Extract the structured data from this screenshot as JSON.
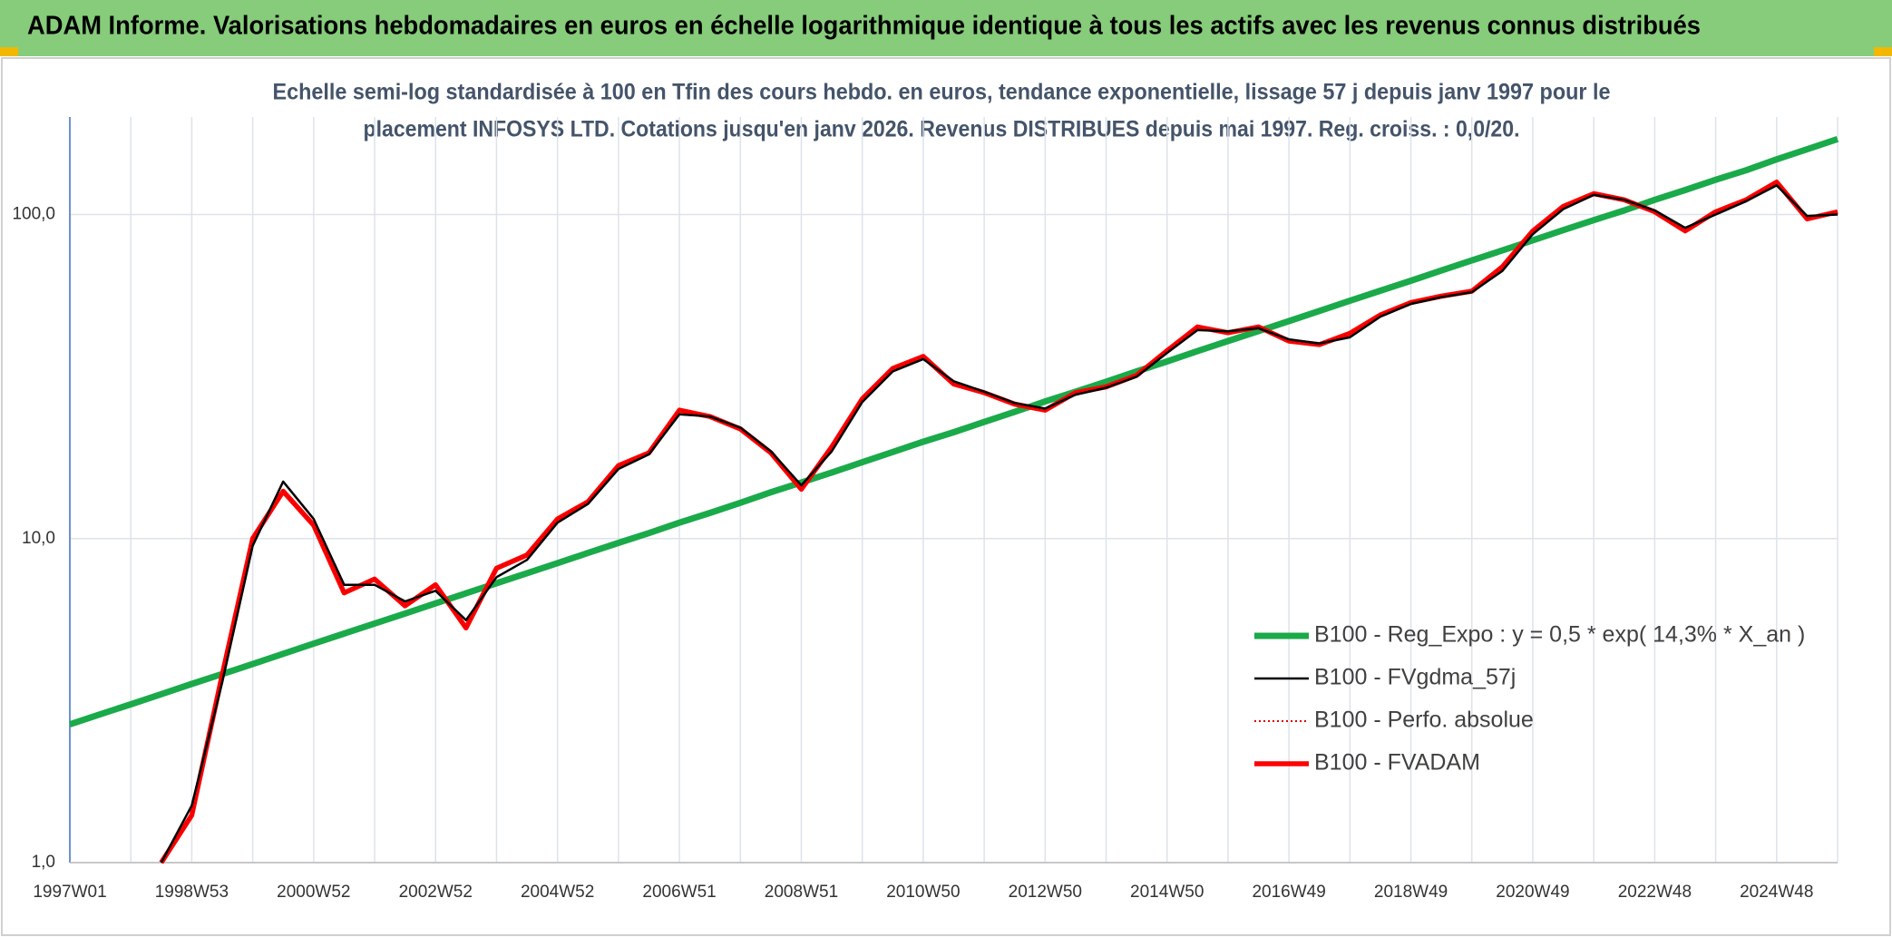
{
  "chart_data": {
    "type": "line",
    "title": "ADAM Informe. Valorisations hebdomadaires en euros en échelle logarithmique identique à tous les actifs avec les revenus connus distribués",
    "subtitle": [
      "Echelle semi-log standardisée à 100 en Tfin des cours hebdo. en euros, tendance exponentielle, lissage 57 j depuis janv 1997 pour le",
      "placement INFOSYS LTD. Cotations jusqu'en janv 2026. Revenus DISTRIBUES depuis mai 1997. Reg. croiss. : 0,0/20."
    ],
    "categories": [
      "1997W01",
      null,
      null,
      null,
      "1998W53",
      null,
      null,
      null,
      "2000W52",
      null,
      null,
      null,
      "2002W52",
      null,
      null,
      null,
      "2004W52",
      null,
      null,
      null,
      "2006W51",
      null,
      null,
      null,
      "2008W51",
      null,
      null,
      null,
      "2010W50",
      null,
      null,
      null,
      "2012W50",
      null,
      null,
      null,
      "2014W50",
      null,
      null,
      null,
      "2016W49",
      null,
      null,
      null,
      "2018W49",
      null,
      null,
      null,
      "2020W49",
      null,
      null,
      null,
      "2022W48",
      null,
      null,
      null,
      "2024W48",
      null,
      null
    ],
    "log_scale": true,
    "ylim": [
      1,
      200
    ],
    "yticks": [
      {
        "value": 1,
        "label": "1,0"
      },
      {
        "value": 10,
        "label": "10,0"
      },
      {
        "value": 100,
        "label": "100,0"
      }
    ],
    "grid": true,
    "legend_position": "right",
    "series": [
      {
        "name": "B100 - Reg_Expo : y = 0,5 * exp( 14,3% *  X_an )",
        "color": "#1aaa4a",
        "dash": "solid",
        "values": [
          2.67,
          2.87,
          3.08,
          3.31,
          3.56,
          3.82,
          4.1,
          4.41,
          4.74,
          5.09,
          5.47,
          5.87,
          6.31,
          6.78,
          7.28,
          7.82,
          8.4,
          9.03,
          9.7,
          10.4,
          11.2,
          12.0,
          12.9,
          13.9,
          14.9,
          16.0,
          17.2,
          18.5,
          19.9,
          21.3,
          22.9,
          24.6,
          26.5,
          28.4,
          30.5,
          32.8,
          35.2,
          37.9,
          40.7,
          43.7,
          46.9,
          50.4,
          54.2,
          58.2,
          62.5,
          67.2,
          72.2,
          77.5,
          83.3,
          89.5,
          96.1,
          103,
          111,
          119,
          128,
          137,
          148,
          159,
          171
        ]
      },
      {
        "name": "B100 - FVgdma_57j",
        "color": "#000000",
        "dash": "solid",
        "values": [
          null,
          null,
          null,
          1.0,
          1.5,
          3.6,
          9.5,
          15,
          11.5,
          7.2,
          7.2,
          6.4,
          6.9,
          5.6,
          7.6,
          8.6,
          11.2,
          12.8,
          16.4,
          18.2,
          24.2,
          23.8,
          22,
          18.6,
          14.6,
          18.6,
          26.4,
          32.8,
          35.8,
          30.6,
          28.4,
          26.2,
          25.2,
          27.8,
          29.2,
          31.6,
          37.4,
          44,
          43.6,
          44.6,
          41.2,
          40,
          41.8,
          48.4,
          53,
          55.6,
          57.6,
          67,
          87,
          104,
          115,
          111,
          103,
          91,
          100,
          110,
          123,
          99,
          100
        ]
      },
      {
        "name": "B100 - Perfo. absolue",
        "color": "#e00000",
        "dash": "dotted",
        "values": [
          null,
          null,
          null,
          1.0,
          1.4,
          3.8,
          10,
          14,
          11,
          6.8,
          7.5,
          6.2,
          7.2,
          5.3,
          8.1,
          8.9,
          11.5,
          13.0,
          16.8,
          18.4,
          24.9,
          23.8,
          21.8,
          18.4,
          14.2,
          19.2,
          27,
          33.5,
          36.5,
          30,
          28.2,
          26,
          24.9,
          28.2,
          29.4,
          31.9,
          38,
          45,
          43.2,
          45,
          40.7,
          39.7,
          43,
          49,
          53.5,
          56,
          58,
          69,
          89,
          106,
          116,
          111,
          102,
          89,
          102,
          111,
          126,
          97,
          102
        ]
      },
      {
        "name": "B100 - FVADAM",
        "color": "#ff0000",
        "dash": "solid",
        "values": [
          null,
          null,
          null,
          1.0,
          1.4,
          3.8,
          10,
          14,
          11,
          6.8,
          7.5,
          6.2,
          7.2,
          5.3,
          8.1,
          8.9,
          11.5,
          13.0,
          16.8,
          18.4,
          24.9,
          23.8,
          21.8,
          18.4,
          14.2,
          19.2,
          27,
          33.5,
          36.5,
          30,
          28.2,
          26,
          24.9,
          28.2,
          29.4,
          31.9,
          38,
          45,
          43.2,
          45,
          40.7,
          39.7,
          43,
          49,
          53.5,
          56,
          58,
          69,
          89,
          106,
          116,
          111,
          102,
          89,
          102,
          111,
          126,
          97,
          102
        ]
      }
    ]
  }
}
